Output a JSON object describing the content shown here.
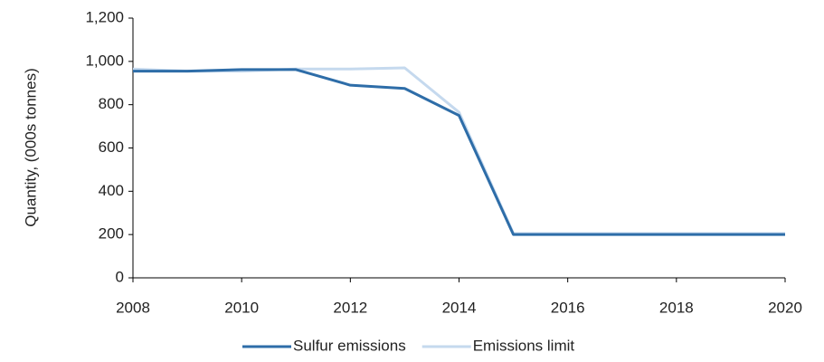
{
  "chart_data": {
    "type": "line",
    "y_label": "Quantity, (000s tonnes)",
    "x": [
      2008,
      2009,
      2010,
      2011,
      2012,
      2013,
      2014,
      2015,
      2016,
      2017,
      2018,
      2019,
      2020
    ],
    "series": [
      {
        "name": "Sulfur emissions",
        "color": "#2e6da8",
        "values": [
          955,
          955,
          962,
          962,
          890,
          875,
          750,
          200,
          200,
          200,
          200,
          200,
          200
        ]
      },
      {
        "name": "Emissions limit",
        "color": "#c5d9ee",
        "values": [
          965,
          955,
          955,
          965,
          965,
          970,
          765,
          205,
          205,
          205,
          205,
          205,
          205
        ]
      }
    ],
    "xlim": [
      2008,
      2020
    ],
    "xticks": [
      2008,
      2010,
      2012,
      2014,
      2016,
      2018,
      2020
    ],
    "ylim": [
      0,
      1200
    ],
    "yticks": [
      0,
      200,
      400,
      600,
      800,
      {
        "value": 1000,
        "label": "1,000"
      },
      {
        "value": 1200,
        "label": "1,200"
      }
    ],
    "grid": false,
    "legend": "bottom"
  }
}
